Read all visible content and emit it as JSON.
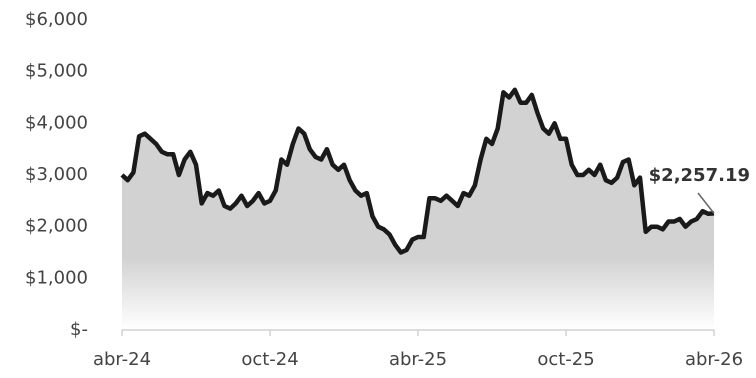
{
  "chart_data": {
    "type": "area-line",
    "categories": [
      "abr-24",
      null,
      null,
      null,
      null,
      null,
      null,
      null,
      null,
      null,
      null,
      null,
      null,
      null,
      null,
      null,
      null,
      null,
      null,
      null,
      null,
      null,
      null,
      null,
      null,
      null,
      "oct-24",
      null,
      null,
      null,
      null,
      null,
      null,
      null,
      null,
      null,
      null,
      null,
      null,
      null,
      null,
      null,
      null,
      null,
      null,
      null,
      null,
      null,
      null,
      null,
      null,
      null,
      "abr-25",
      null,
      null,
      null,
      null,
      null,
      null,
      null,
      null,
      null,
      null,
      null,
      null,
      null,
      null,
      null,
      null,
      null,
      null,
      null,
      null,
      null,
      null,
      null,
      null,
      null,
      "oct-25",
      null,
      null,
      null,
      null,
      null,
      null,
      null,
      null,
      null,
      null,
      null,
      null,
      null,
      null,
      null,
      null,
      null,
      null,
      null,
      null,
      null,
      null,
      null,
      null,
      null,
      "abr-26"
    ],
    "values": [
      3000,
      2900,
      3050,
      3750,
      3800,
      3700,
      3600,
      3450,
      3400,
      3400,
      3000,
      3300,
      3450,
      3200,
      2450,
      2650,
      2600,
      2700,
      2400,
      2350,
      2450,
      2600,
      2400,
      2500,
      2650,
      2450,
      2500,
      2700,
      3300,
      3200,
      3600,
      3900,
      3800,
      3500,
      3350,
      3300,
      3500,
      3200,
      3100,
      3200,
      2900,
      2700,
      2600,
      2650,
      2200,
      2000,
      1950,
      1850,
      1650,
      1500,
      1550,
      1750,
      1800,
      1800,
      2550,
      2550,
      2500,
      2600,
      2500,
      2400,
      2650,
      2600,
      2800,
      3300,
      3700,
      3600,
      3900,
      4600,
      4500,
      4650,
      4400,
      4400,
      4550,
      4200,
      3900,
      3800,
      4000,
      3700,
      3700,
      3200,
      3000,
      3000,
      3100,
      3000,
      3200,
      2900,
      2850,
      2950,
      3250,
      3300,
      2800,
      2950,
      1900,
      2000,
      2000,
      1950,
      2100,
      2100,
      2150,
      2000,
      2100,
      2150,
      2300,
      2250,
      2257.19
    ],
    "color": "#1a1a1a",
    "annotation": "$2,257.19",
    "ylim": [
      0,
      6000
    ],
    "yticks": [
      {
        "value": 0,
        "label": "$-"
      },
      {
        "value": 1000,
        "label": "$1,000"
      },
      {
        "value": 2000,
        "label": "$2,000"
      },
      {
        "value": 3000,
        "label": "$3,000"
      },
      {
        "value": 4000,
        "label": "$4,000"
      },
      {
        "value": 5000,
        "label": "$5,000"
      },
      {
        "value": 6000,
        "label": "$6,000"
      }
    ]
  }
}
